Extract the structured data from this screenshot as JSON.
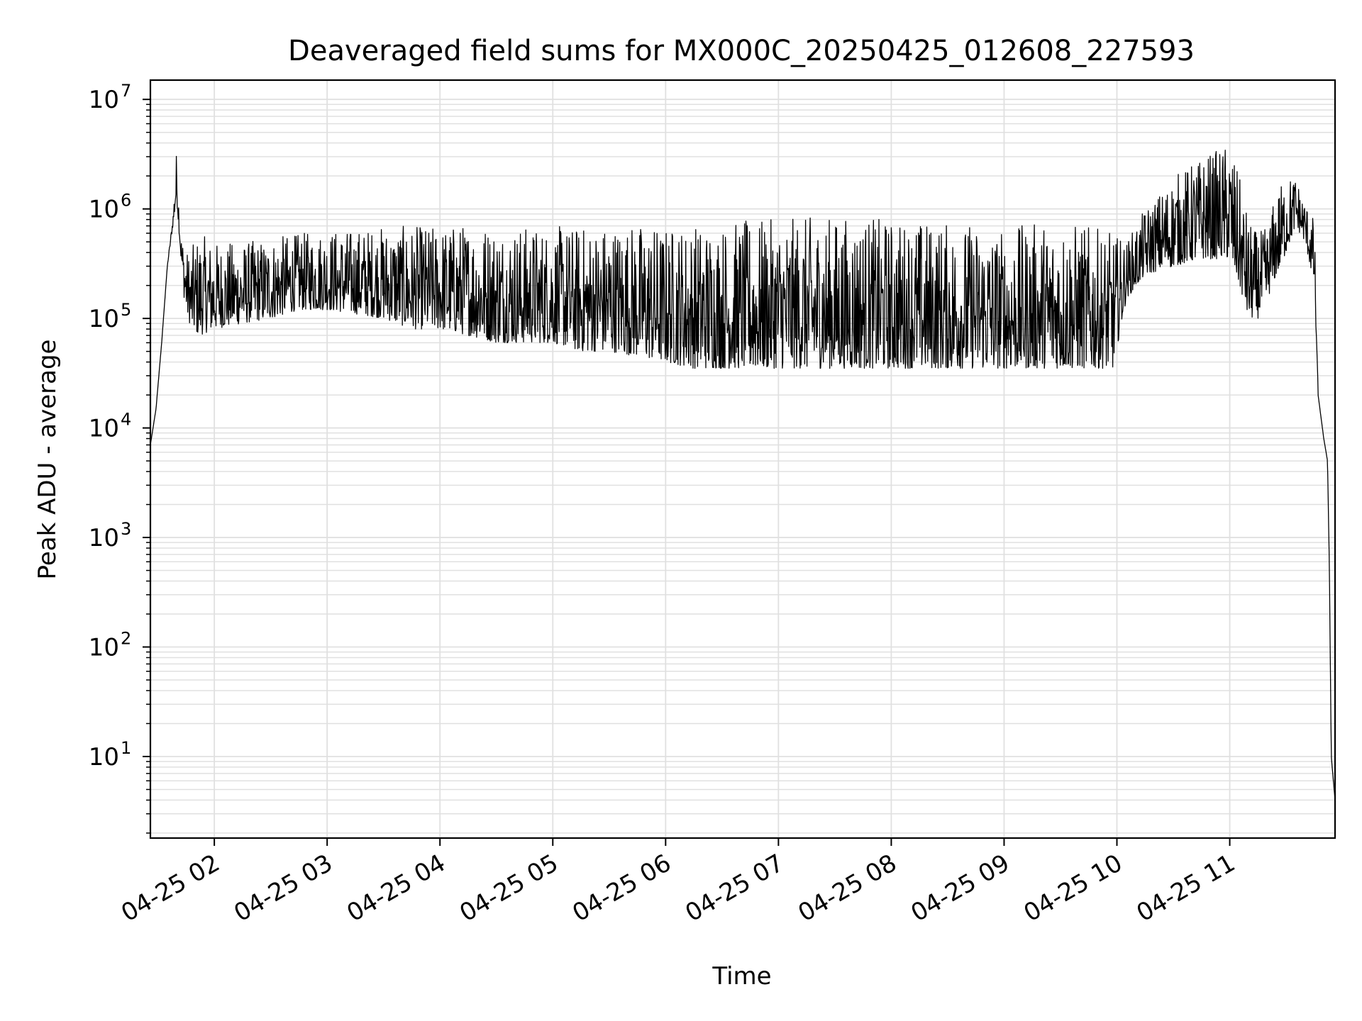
{
  "chart_data": {
    "type": "line",
    "title": "Deaveraged field sums for MX000C_20250425_012608_227593",
    "xlabel": "Time",
    "ylabel": "Peak ADU - average",
    "yscale": "log",
    "grid": true,
    "line_color": "#000000",
    "grid_color": "#e0e0e0",
    "ylim": [
      1.8,
      15000000
    ],
    "xlim": [
      "2025-04-25 01:26",
      "2025-04-25 11:56"
    ],
    "x_ticks": [
      {
        "t": "2025-04-25 02:00",
        "label": "04-25 02"
      },
      {
        "t": "2025-04-25 03:00",
        "label": "04-25 03"
      },
      {
        "t": "2025-04-25 04:00",
        "label": "04-25 04"
      },
      {
        "t": "2025-04-25 05:00",
        "label": "04-25 05"
      },
      {
        "t": "2025-04-25 06:00",
        "label": "04-25 06"
      },
      {
        "t": "2025-04-25 07:00",
        "label": "04-25 07"
      },
      {
        "t": "2025-04-25 08:00",
        "label": "04-25 08"
      },
      {
        "t": "2025-04-25 09:00",
        "label": "04-25 09"
      },
      {
        "t": "2025-04-25 10:00",
        "label": "04-25 10"
      },
      {
        "t": "2025-04-25 11:00",
        "label": "04-25 11"
      }
    ],
    "y_ticks": [
      {
        "value": 10,
        "base": "10",
        "exp": "1"
      },
      {
        "value": 100,
        "base": "10",
        "exp": "2"
      },
      {
        "value": 1000,
        "base": "10",
        "exp": "3"
      },
      {
        "value": 10000,
        "base": "10",
        "exp": "4"
      },
      {
        "value": 100000,
        "base": "10",
        "exp": "5"
      },
      {
        "value": 1000000,
        "base": "10",
        "exp": "6"
      },
      {
        "value": 10000000,
        "base": "10",
        "exp": "7"
      }
    ],
    "series": [
      {
        "x": [
          "2025-04-25 01:26",
          "2025-04-25 01:29",
          "2025-04-25 01:32",
          "2025-04-25 01:35",
          "2025-04-25 01:38",
          "2025-04-25 01:40",
          "2025-04-25 01:42",
          "2025-04-25 01:44",
          "2025-04-25 01:46",
          "2025-04-25 01:48",
          "2025-04-25 01:52",
          "2025-04-25 02:00",
          "2025-04-25 02:15",
          "2025-04-25 02:30",
          "2025-04-25 02:45",
          "2025-04-25 03:00",
          "2025-04-25 03:15",
          "2025-04-25 03:30",
          "2025-04-25 03:45",
          "2025-04-25 04:00",
          "2025-04-25 04:15",
          "2025-04-25 04:30",
          "2025-04-25 04:45",
          "2025-04-25 05:00",
          "2025-04-25 05:15",
          "2025-04-25 05:30",
          "2025-04-25 05:45",
          "2025-04-25 06:00",
          "2025-04-25 06:15",
          "2025-04-25 06:30",
          "2025-04-25 06:45",
          "2025-04-25 07:00",
          "2025-04-25 07:15",
          "2025-04-25 07:30",
          "2025-04-25 07:45",
          "2025-04-25 08:00",
          "2025-04-25 08:15",
          "2025-04-25 08:30",
          "2025-04-25 08:45",
          "2025-04-25 09:00",
          "2025-04-25 09:15",
          "2025-04-25 09:30",
          "2025-04-25 09:45",
          "2025-04-25 09:58",
          "2025-04-25 10:05",
          "2025-04-25 10:15",
          "2025-04-25 10:30",
          "2025-04-25 10:45",
          "2025-04-25 11:00",
          "2025-04-25 11:05",
          "2025-04-25 11:10",
          "2025-04-25 11:15",
          "2025-04-25 11:20",
          "2025-04-25 11:25",
          "2025-04-25 11:30",
          "2025-04-25 11:35",
          "2025-04-25 11:40",
          "2025-04-25 11:45",
          "2025-04-25 11:47",
          "2025-04-25 11:50",
          "2025-04-25 11:52",
          "2025-04-25 11:53",
          "2025-04-25 11:54",
          "2025-04-25 11:56"
        ],
        "lo": [
          7000,
          15000,
          60000,
          300000,
          700000,
          1200000,
          400000,
          150000,
          100000,
          80000,
          70000,
          80000,
          90000,
          100000,
          120000,
          120000,
          110000,
          100000,
          80000,
          80000,
          70000,
          60000,
          60000,
          60000,
          50000,
          50000,
          45000,
          40000,
          35000,
          35000,
          35000,
          35000,
          35000,
          35000,
          35000,
          35000,
          35000,
          35000,
          35000,
          35000,
          35000,
          35000,
          35000,
          35000,
          150000,
          250000,
          300000,
          350000,
          350000,
          200000,
          100000,
          100000,
          150000,
          250000,
          400000,
          700000,
          500000,
          200000,
          20000,
          8000,
          5000,
          500,
          10,
          4
        ],
        "hi": [
          7000,
          15000,
          60000,
          300000,
          900000,
          3800000,
          600000,
          500000,
          400000,
          450000,
          600000,
          500000,
          500000,
          550000,
          600000,
          650000,
          650000,
          700000,
          700000,
          700000,
          750000,
          750000,
          700000,
          700000,
          700000,
          750000,
          750000,
          700000,
          750000,
          750000,
          800000,
          800000,
          850000,
          850000,
          850000,
          800000,
          800000,
          750000,
          750000,
          650000,
          750000,
          800000,
          700000,
          600000,
          500000,
          1000000,
          2000000,
          3000000,
          4000000,
          2000000,
          800000,
          600000,
          700000,
          1500000,
          2000000,
          2000000,
          1200000,
          800000,
          20000,
          8000,
          5000,
          500,
          10,
          4
        ]
      }
    ]
  }
}
